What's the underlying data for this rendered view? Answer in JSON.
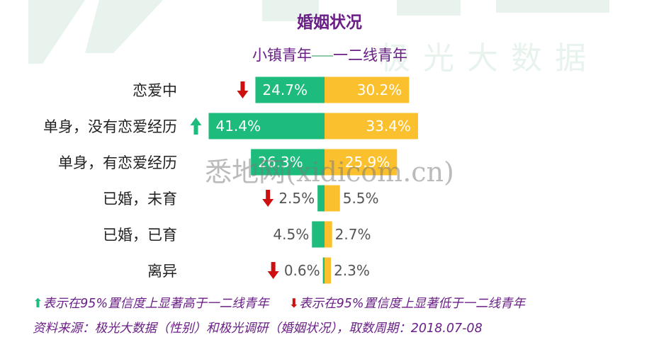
{
  "watermark": {
    "brand": "极光大数据",
    "overlay": "悉地网(xidicom.cn)"
  },
  "title": "婚姻状况",
  "legend": {
    "left": "小镇青年",
    "right": "一二线青年"
  },
  "colors": {
    "left_series": "#1ebc7c",
    "right_series": "#fbc02d",
    "up_arrow": "#1ebc7c",
    "down_arrow": "#cc1010",
    "title": "#6a1f86"
  },
  "chart_data": {
    "type": "bar",
    "categories": [
      "恋爱中",
      "单身，没有恋爱经历",
      "单身，有恋爱经历",
      "已婚，未育",
      "已婚，已育",
      "离异"
    ],
    "series": [
      {
        "name": "小镇青年",
        "values": [
          24.7,
          41.4,
          26.3,
          2.5,
          4.5,
          0.6
        ],
        "labels": [
          "24.7%",
          "41.4%",
          "26.3%",
          "2.5%",
          "4.5%",
          "0.6%"
        ],
        "significance": [
          "down",
          "up",
          "none",
          "down",
          "none",
          "down"
        ]
      },
      {
        "name": "一二线青年",
        "values": [
          30.2,
          33.4,
          25.9,
          5.5,
          2.7,
          2.3
        ],
        "labels": [
          "30.2%",
          "33.4%",
          "25.9%",
          "5.5%",
          "2.7%",
          "2.3%"
        ]
      }
    ]
  },
  "notes": {
    "up_arrow": "⬆",
    "up_text": "表示在95%置信度上显著高于一二线青年",
    "down_arrow": "⬇",
    "down_text": "表示在95%置信度上显著低于一二线青年"
  },
  "source": "资料来源：极光大数据（性别）和极光调研（婚姻状况），取数周期：2018.07-08"
}
